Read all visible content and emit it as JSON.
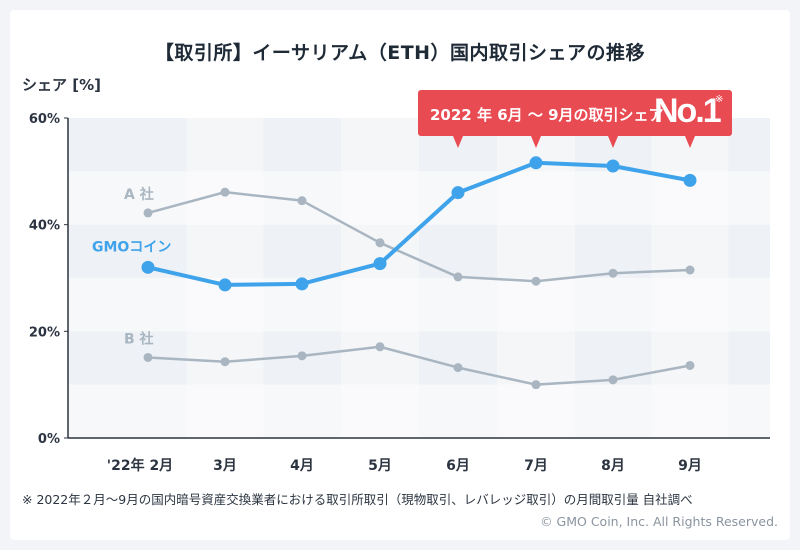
{
  "title": "【取引所】イーサリアム（ETH）国内取引シェアの推移",
  "y_unit_label": "シェア [%]",
  "callout": {
    "text": "2022 年 6月 ～ 9月の取引シェア",
    "rank": "No.1",
    "mark": "※"
  },
  "footnote": "※ 2022年２月～9月の国内暗号資産交換業者における取引所取引（現物取引、レバレッジ取引）の月間取引量 自社調べ",
  "copyright": "© GMO Coin, Inc. All Rights Reserved.",
  "colors": {
    "highlight": "#3ea3ea",
    "other": "#a9b6c1",
    "callout": "#e94b52",
    "band_dark": "#eef1f5",
    "band_light": "#f7f8fa"
  },
  "chart_data": {
    "type": "line",
    "categories": [
      "'22年 2月",
      "3月",
      "4月",
      "5月",
      "6月",
      "7月",
      "8月",
      "9月"
    ],
    "ylim": [
      0,
      60
    ],
    "y_ticks": [
      "0%",
      "20%",
      "40%",
      "60%"
    ],
    "y_tick_values": [
      0,
      20,
      40,
      60
    ],
    "ylabel": "シェア [%]",
    "series": [
      {
        "name": "A 社",
        "highlight": false,
        "values": [
          42.2,
          46.1,
          44.5,
          36.6,
          30.2,
          29.4,
          30.9,
          31.5
        ]
      },
      {
        "name": "GMOコイン",
        "highlight": true,
        "values": [
          32.0,
          28.7,
          28.9,
          32.7,
          46.0,
          51.6,
          51.0,
          48.3
        ]
      },
      {
        "name": "B 社",
        "highlight": false,
        "values": [
          15.1,
          14.3,
          15.4,
          17.1,
          13.2,
          10.0,
          10.9,
          13.6
        ]
      }
    ]
  }
}
